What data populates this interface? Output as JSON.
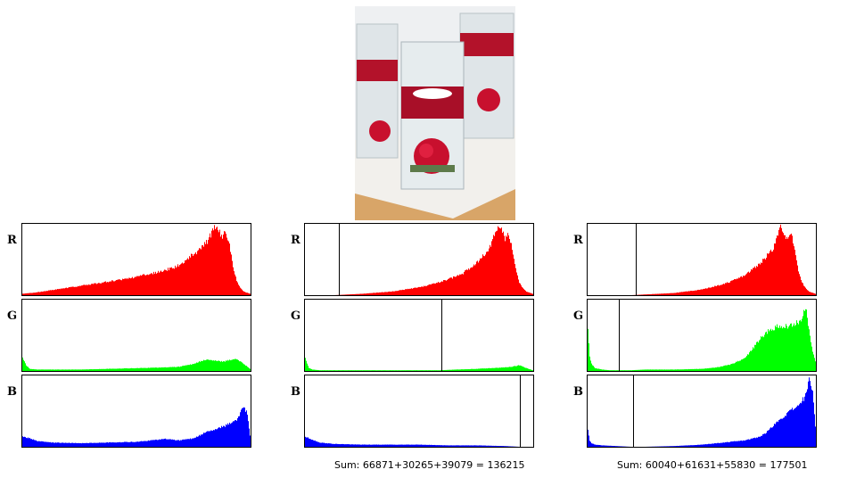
{
  "photo": {
    "name": "roses-candle-vases"
  },
  "channel_labels": [
    "R",
    "G",
    "B"
  ],
  "colors": {
    "R": "#ff0000",
    "G": "#00ff00",
    "B": "#0000ff",
    "marker": "#000000"
  },
  "sums": [
    "",
    "Sum: 66871+30265+39079 = 136215",
    "Sum: 60040+61631+55830 = 177501"
  ],
  "chart_data": [
    {
      "type": "area",
      "title": "",
      "xlabel": "",
      "ylabel": "",
      "xlim": [
        0,
        255
      ],
      "series": [
        {
          "channel": "R",
          "threshold": null,
          "x": [
            0,
            16,
            32,
            48,
            64,
            80,
            96,
            112,
            128,
            144,
            160,
            176,
            184,
            192,
            200,
            208,
            212,
            216,
            220,
            224,
            228,
            232,
            236,
            240,
            244,
            248,
            255
          ],
          "y": [
            2,
            4,
            7,
            10,
            13,
            16,
            19,
            22,
            26,
            30,
            35,
            42,
            50,
            58,
            66,
            76,
            88,
            97,
            90,
            82,
            88,
            70,
            40,
            20,
            10,
            5,
            2
          ]
        },
        {
          "channel": "G",
          "threshold": null,
          "x": [
            0,
            4,
            8,
            16,
            32,
            64,
            96,
            128,
            160,
            176,
            192,
            200,
            208,
            216,
            224,
            232,
            240,
            248,
            255
          ],
          "y": [
            18,
            8,
            3,
            2,
            2,
            2,
            3,
            4,
            5,
            6,
            10,
            14,
            16,
            15,
            13,
            15,
            17,
            10,
            3
          ]
        },
        {
          "channel": "B",
          "threshold": null,
          "x": [
            0,
            8,
            16,
            32,
            64,
            96,
            128,
            144,
            160,
            176,
            192,
            208,
            224,
            232,
            240,
            244,
            248,
            252,
            255
          ],
          "y": [
            14,
            12,
            8,
            6,
            5,
            6,
            7,
            9,
            11,
            9,
            12,
            22,
            28,
            32,
            38,
            48,
            58,
            46,
            16
          ]
        }
      ]
    },
    {
      "type": "area",
      "title": "",
      "xlabel": "",
      "ylabel": "",
      "xlim": [
        0,
        255
      ],
      "series": [
        {
          "channel": "R",
          "threshold": 38,
          "x": [
            0,
            32,
            48,
            64,
            96,
            128,
            144,
            160,
            176,
            184,
            192,
            200,
            208,
            212,
            216,
            220,
            224,
            228,
            232,
            236,
            240,
            244,
            248,
            255
          ],
          "y": [
            0,
            0,
            1,
            2,
            5,
            11,
            16,
            22,
            30,
            38,
            46,
            56,
            68,
            84,
            96,
            90,
            80,
            86,
            66,
            36,
            18,
            10,
            5,
            2
          ]
        },
        {
          "channel": "G",
          "threshold": 153,
          "x": [
            0,
            2,
            4,
            8,
            16,
            32,
            64,
            128,
            150,
            170,
            192,
            208,
            224,
            232,
            240,
            248,
            255
          ],
          "y": [
            18,
            10,
            4,
            2,
            1,
            1,
            1,
            1,
            1,
            2,
            3,
            4,
            5,
            6,
            8,
            4,
            1
          ]
        },
        {
          "channel": "B",
          "threshold": 241,
          "x": [
            0,
            8,
            16,
            32,
            64,
            96,
            128,
            160,
            192,
            224,
            240,
            255
          ],
          "y": [
            14,
            10,
            6,
            4,
            3,
            3,
            3,
            2,
            2,
            1,
            0,
            0
          ]
        }
      ]
    },
    {
      "type": "area",
      "title": "",
      "xlabel": "",
      "ylabel": "",
      "xlim": [
        0,
        255
      ],
      "series": [
        {
          "channel": "R",
          "threshold": 54,
          "x": [
            0,
            48,
            64,
            96,
            128,
            144,
            160,
            176,
            184,
            192,
            200,
            208,
            212,
            216,
            220,
            224,
            228,
            232,
            236,
            240,
            244,
            248,
            255
          ],
          "y": [
            0,
            0,
            1,
            3,
            8,
            13,
            19,
            28,
            36,
            44,
            54,
            66,
            80,
            96,
            88,
            78,
            84,
            64,
            34,
            18,
            10,
            5,
            2
          ]
        },
        {
          "channel": "G",
          "threshold": 35,
          "x": [
            0,
            2,
            4,
            8,
            16,
            24,
            32,
            48,
            64,
            96,
            128,
            144,
            160,
            176,
            184,
            192,
            200,
            208,
            216,
            224,
            232,
            240,
            244,
            248,
            252,
            255
          ],
          "y": [
            60,
            20,
            10,
            4,
            2,
            1,
            1,
            1,
            2,
            2,
            3,
            5,
            9,
            18,
            30,
            44,
            54,
            60,
            64,
            62,
            66,
            72,
            90,
            58,
            26,
            14
          ]
        },
        {
          "channel": "B",
          "threshold": 51,
          "x": [
            0,
            2,
            4,
            8,
            16,
            32,
            48,
            64,
            96,
            128,
            160,
            176,
            192,
            200,
            208,
            216,
            224,
            232,
            240,
            244,
            248,
            252,
            255
          ],
          "y": [
            24,
            8,
            5,
            3,
            2,
            1,
            0,
            0,
            1,
            3,
            7,
            9,
            14,
            20,
            30,
            38,
            48,
            54,
            64,
            72,
            96,
            76,
            30
          ]
        }
      ]
    }
  ]
}
